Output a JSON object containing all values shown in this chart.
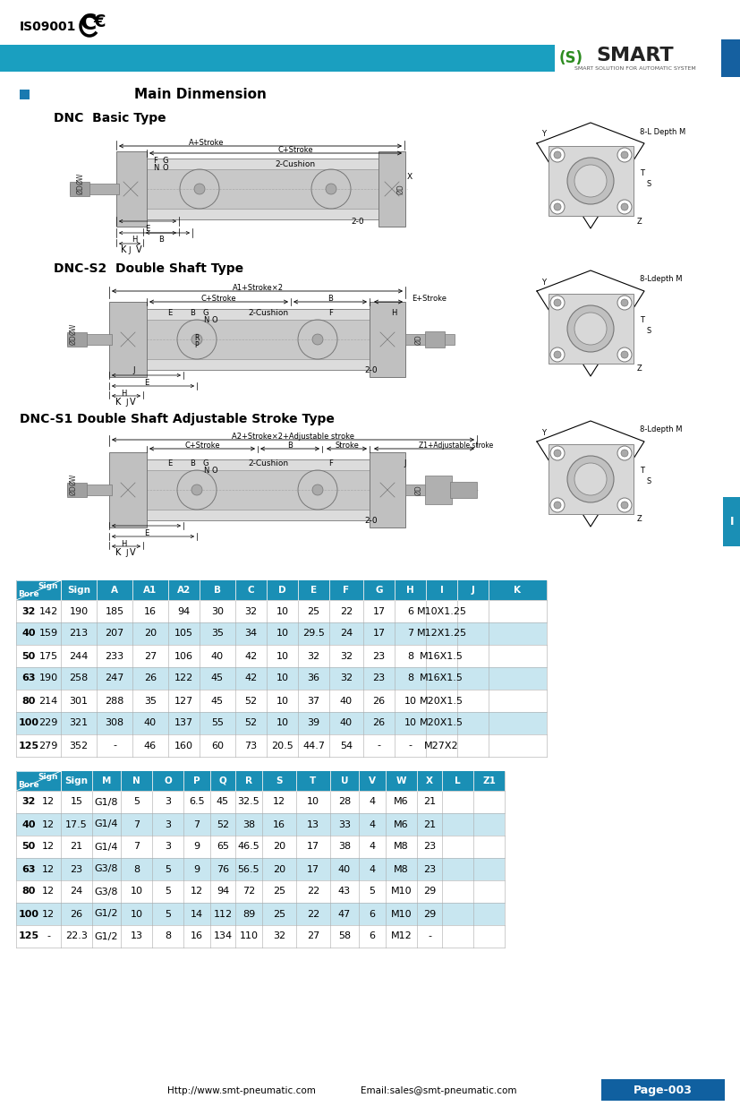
{
  "table1_headers": [
    "Bore",
    "Sign",
    "A",
    "A1",
    "A2",
    "B",
    "C",
    "D",
    "E",
    "F",
    "G",
    "H",
    "I",
    "J",
    "K"
  ],
  "table1_bore": [
    "32",
    "40",
    "50",
    "63",
    "80",
    "100",
    "125"
  ],
  "table1_data": [
    [
      "142",
      "190",
      "185",
      "16",
      "94",
      "30",
      "32",
      "10",
      "25",
      "22",
      "17",
      "6",
      "M10X1.25"
    ],
    [
      "159",
      "213",
      "207",
      "20",
      "105",
      "35",
      "34",
      "10",
      "29.5",
      "24",
      "17",
      "7",
      "M12X1.25"
    ],
    [
      "175",
      "244",
      "233",
      "27",
      "106",
      "40",
      "42",
      "10",
      "32",
      "32",
      "23",
      "8",
      "M16X1.5"
    ],
    [
      "190",
      "258",
      "247",
      "26",
      "122",
      "45",
      "42",
      "10",
      "36",
      "32",
      "23",
      "8",
      "M16X1.5"
    ],
    [
      "214",
      "301",
      "288",
      "35",
      "127",
      "45",
      "52",
      "10",
      "37",
      "40",
      "26",
      "10",
      "M20X1.5"
    ],
    [
      "229",
      "321",
      "308",
      "40",
      "137",
      "55",
      "52",
      "10",
      "39",
      "40",
      "26",
      "10",
      "M20X1.5"
    ],
    [
      "279",
      "352",
      "-",
      "46",
      "160",
      "60",
      "73",
      "20.5",
      "44.7",
      "54",
      "-",
      "-",
      "M27X2"
    ]
  ],
  "table2_headers": [
    "Bore",
    "Sign",
    "M",
    "N",
    "O",
    "P",
    "Q",
    "R",
    "S",
    "T",
    "U",
    "V",
    "W",
    "X",
    "L",
    "Z1"
  ],
  "table2_bore": [
    "32",
    "40",
    "50",
    "63",
    "80",
    "100",
    "125"
  ],
  "table2_data": [
    [
      "12",
      "15",
      "G1/8",
      "5",
      "3",
      "6.5",
      "45",
      "32.5",
      "12",
      "10",
      "28",
      "4",
      "M6",
      "21"
    ],
    [
      "12",
      "17.5",
      "G1/4",
      "7",
      "3",
      "7",
      "52",
      "38",
      "16",
      "13",
      "33",
      "4",
      "M6",
      "21"
    ],
    [
      "12",
      "21",
      "G1/4",
      "7",
      "3",
      "9",
      "65",
      "46.5",
      "20",
      "17",
      "38",
      "4",
      "M8",
      "23"
    ],
    [
      "12",
      "23",
      "G3/8",
      "8",
      "5",
      "9",
      "76",
      "56.5",
      "20",
      "17",
      "40",
      "4",
      "M8",
      "23"
    ],
    [
      "12",
      "24",
      "G3/8",
      "10",
      "5",
      "12",
      "94",
      "72",
      "25",
      "22",
      "43",
      "5",
      "M10",
      "29"
    ],
    [
      "12",
      "26",
      "G1/2",
      "10",
      "5",
      "14",
      "112",
      "89",
      "25",
      "22",
      "47",
      "6",
      "M10",
      "29"
    ],
    [
      "-",
      "22.3",
      "G1/2",
      "13",
      "8",
      "16",
      "134",
      "110",
      "32",
      "27",
      "58",
      "6",
      "M12",
      "-"
    ]
  ],
  "footer_url": "Http://www.smt-pneumatic.com",
  "footer_email": "Email:sales@smt-pneumatic.com",
  "footer_page": "Page-003",
  "header_blue": "#1a8fb5",
  "light_blue_row": "#c8e6f0",
  "blue_bar": "#1a9fc0",
  "dark_blue_box": "#1060a0",
  "tab_blue": "#1a8fb5"
}
